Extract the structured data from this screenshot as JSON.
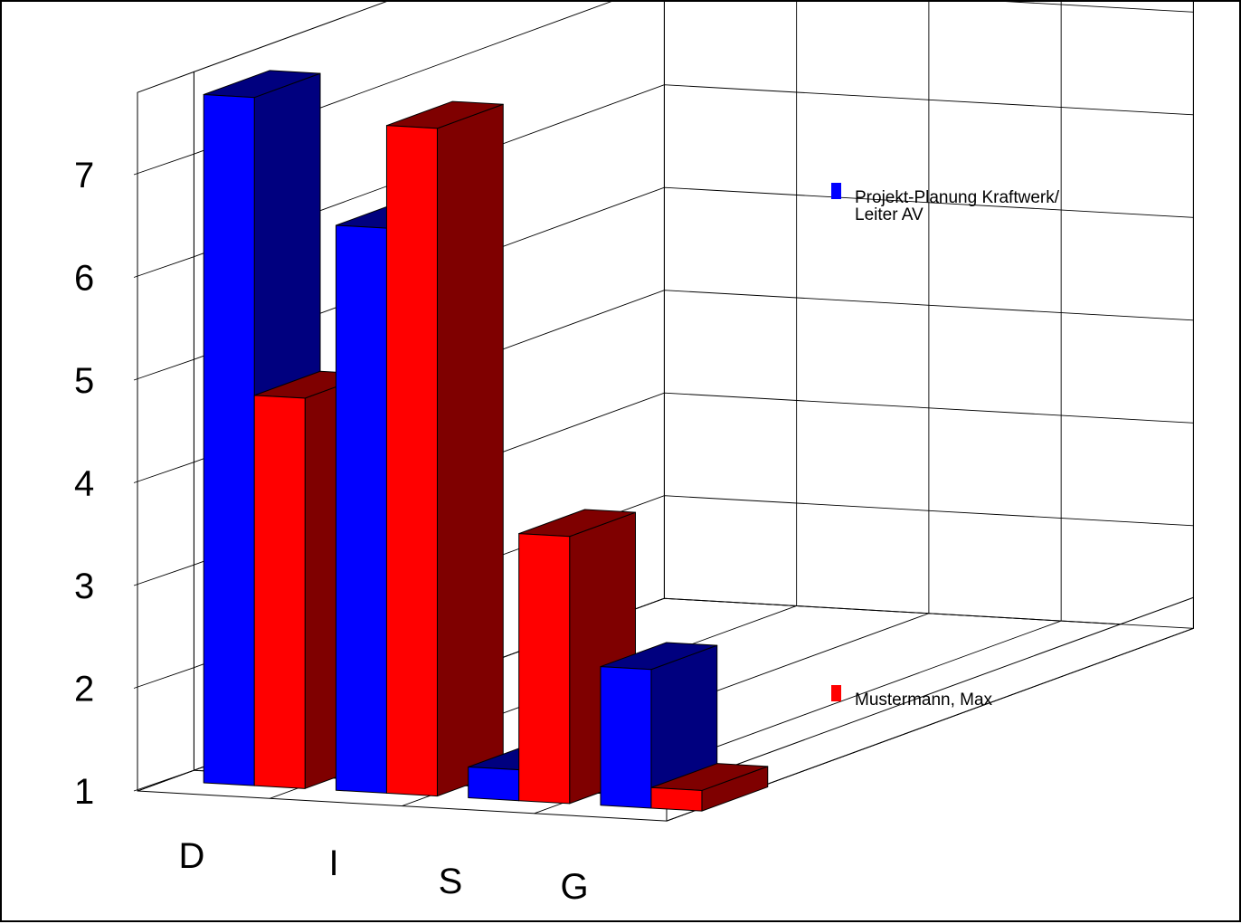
{
  "chart_data": {
    "type": "bar",
    "categories": [
      "D",
      "I",
      "S",
      "G"
    ],
    "series": [
      {
        "name": "Projekt-Planung Kraftwerk/ Leiter AV",
        "legend_lines": [
          "Projekt-Planung Kraftwerk/",
          " Leiter AV"
        ],
        "values": [
          7.7,
          6.5,
          1.3,
          2.35
        ],
        "color": "#0000ff",
        "dark_color": "#00007f"
      },
      {
        "name": "Mustermann, Max",
        "legend_lines": [
          "Mustermann, Max"
        ],
        "values": [
          4.8,
          7.5,
          3.6,
          1.2
        ],
        "color": "#ff0000",
        "dark_color": "#7f0000"
      }
    ],
    "yticks": [
      "1",
      "2",
      "3",
      "4",
      "5",
      "6",
      "7"
    ],
    "ylim": [
      1,
      7.8
    ],
    "title": "",
    "xlabel": "",
    "ylabel": "",
    "grid": true,
    "legend_position": "right",
    "projection": "3d"
  }
}
